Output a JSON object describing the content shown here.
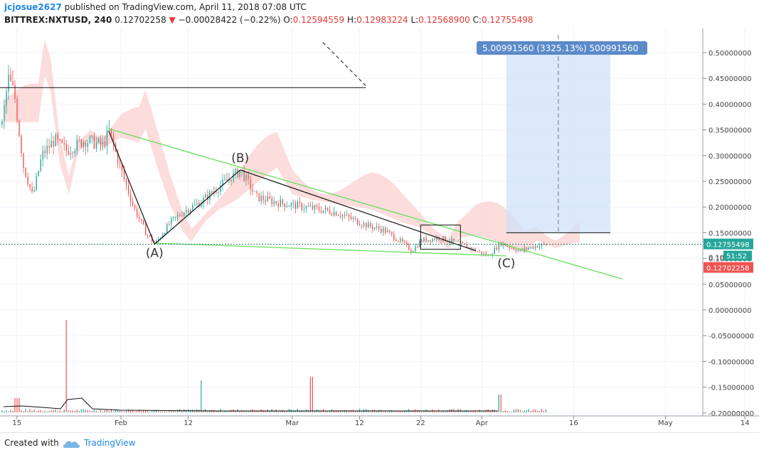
{
  "header": {
    "author": "jcjosue2627",
    "published_text": "published on TradingView.com, April 11, 2018 07:08 UTC",
    "symbol": "BITTREX:NXTUSD, 240",
    "last_price": "0.12702258",
    "change_arrow": "▼",
    "change": "−0.00028422 (−0.22%)",
    "o_label": "O:",
    "o_value": "0.12594559",
    "h_label": "H:",
    "h_value": "0.12983224",
    "l_label": "L:",
    "l_value": "0.12568900",
    "c_label": "C:",
    "c_value": "0.12755498"
  },
  "footer": {
    "created_with": "Created with",
    "brand": "TradingView"
  },
  "colors": {
    "up": "#26a69a",
    "down": "#ef5350",
    "trend": "#66e05a",
    "cloud": "#fcd3d3",
    "measure": "#cfe2f8",
    "price_tag": "#26a69a",
    "bid_tag": "#ef5350"
  },
  "chart_data": {
    "type": "candlestick",
    "y_axis_labels": [
      "0.50000000",
      "0.45000000",
      "0.40000000",
      "0.35000000",
      "0.30000000",
      "0.25000000",
      "0.20000000",
      "0.15000000",
      "0.10000000",
      "0.05000000",
      "0.00000000",
      "-0.05000000",
      "-0.10000000",
      "-0.15000000",
      "-0.20000000"
    ],
    "x_axis_labels": [
      {
        "label": "15",
        "day": -17
      },
      {
        "label": "Feb",
        "day": 0
      },
      {
        "label": "12",
        "day": 11
      },
      {
        "label": "Mar",
        "day": 28
      },
      {
        "label": "12",
        "day": 39
      },
      {
        "label": "22",
        "day": 49
      },
      {
        "label": "Apr",
        "day": 59
      },
      {
        "label": "16",
        "day": 74
      },
      {
        "label": "May",
        "day": 89
      },
      {
        "label": "14",
        "day": 102
      }
    ],
    "price_tags": {
      "close": "0.12755498",
      "countdown": "51:52",
      "last": "0.12702258",
      "partial": "0.100"
    },
    "wave_labels": [
      {
        "label": "(A)",
        "day": 5.5,
        "price": 0.103
      },
      {
        "label": "(B)",
        "day": 19.5,
        "price": 0.287
      },
      {
        "label": "(C)",
        "day": 63,
        "price": 0.083
      }
    ],
    "wave_points": [
      {
        "day": -2,
        "price": 0.348
      },
      {
        "day": 5.5,
        "price": 0.128
      },
      {
        "day": 19.5,
        "price": 0.272
      },
      {
        "day": 58,
        "price": 0.115
      }
    ],
    "upper_trendline": [
      {
        "day": -2,
        "price": 0.352
      },
      {
        "day": 82,
        "price": 0.06
      }
    ],
    "lower_trendline": [
      {
        "day": 5.5,
        "price": 0.13
      },
      {
        "day": 63,
        "price": 0.105
      }
    ],
    "horizontal_line": {
      "price": 0.432,
      "from_day": -20,
      "to_day": 40
    },
    "dashed_segment": [
      {
        "day": 33,
        "price": 0.52
      },
      {
        "day": 40,
        "price": 0.436
      }
    ],
    "measure_box": {
      "from_day": 63,
      "to_day": 80,
      "top": 0.52,
      "bottom": 0.15,
      "label": "5.00991560 (3325.13%) 500991560"
    },
    "rect_box": {
      "from_day": 49,
      "to_day": 55.5,
      "top": 0.165,
      "bottom": 0.118
    },
    "close_line_price": 0.12755498
  }
}
